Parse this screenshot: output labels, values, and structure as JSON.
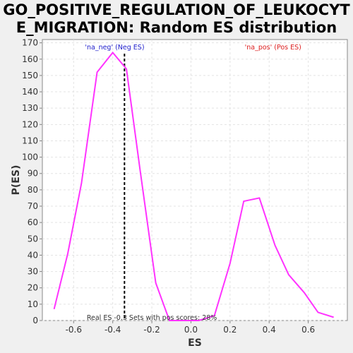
{
  "chart_data": {
    "type": "line",
    "title": "GO_POSITIVE_REGULATION_OF_LEUKOCYTE_MIGRATION: Random ES distribution",
    "xlabel": "ES",
    "ylabel": "P(ES)",
    "xlim": [
      -0.76,
      0.8
    ],
    "ylim": [
      0,
      172
    ],
    "xticks": [
      "-0.6",
      "-0.4",
      "-0.2",
      "0.0",
      "0.2",
      "0.4",
      "0.6"
    ],
    "xtick_values": [
      -0.6,
      -0.4,
      -0.2,
      0.0,
      0.2,
      0.4,
      0.6
    ],
    "yticks": [
      0,
      10,
      20,
      30,
      40,
      50,
      60,
      70,
      80,
      90,
      100,
      110,
      120,
      130,
      140,
      150,
      160,
      170
    ],
    "grid": true,
    "series": [
      {
        "color": "#ff33ff",
        "x": [
          -0.7,
          -0.63,
          -0.56,
          -0.48,
          -0.4,
          -0.33,
          -0.26,
          -0.18,
          -0.11,
          -0.03,
          0.04,
          0.12,
          0.2,
          0.27,
          0.35,
          0.43,
          0.5,
          0.58,
          0.65,
          0.73
        ],
        "y": [
          7,
          41,
          84,
          152,
          164,
          154,
          92,
          23,
          0,
          0,
          0,
          3,
          35,
          73,
          75,
          46,
          28,
          17,
          5,
          2
        ]
      }
    ],
    "real_es": -0.34,
    "annotations": {
      "neg_label": "'na_neg' (Neg ES)",
      "pos_label": "'na_pos' (Pos ES)",
      "bottom_text": "Real ES -0.3 Sets with pos scores: 28%"
    },
    "colors": {
      "neg": "#2222cc",
      "pos": "#dd2222",
      "line": "#ff33ff",
      "real_es_line": "#000000"
    }
  }
}
